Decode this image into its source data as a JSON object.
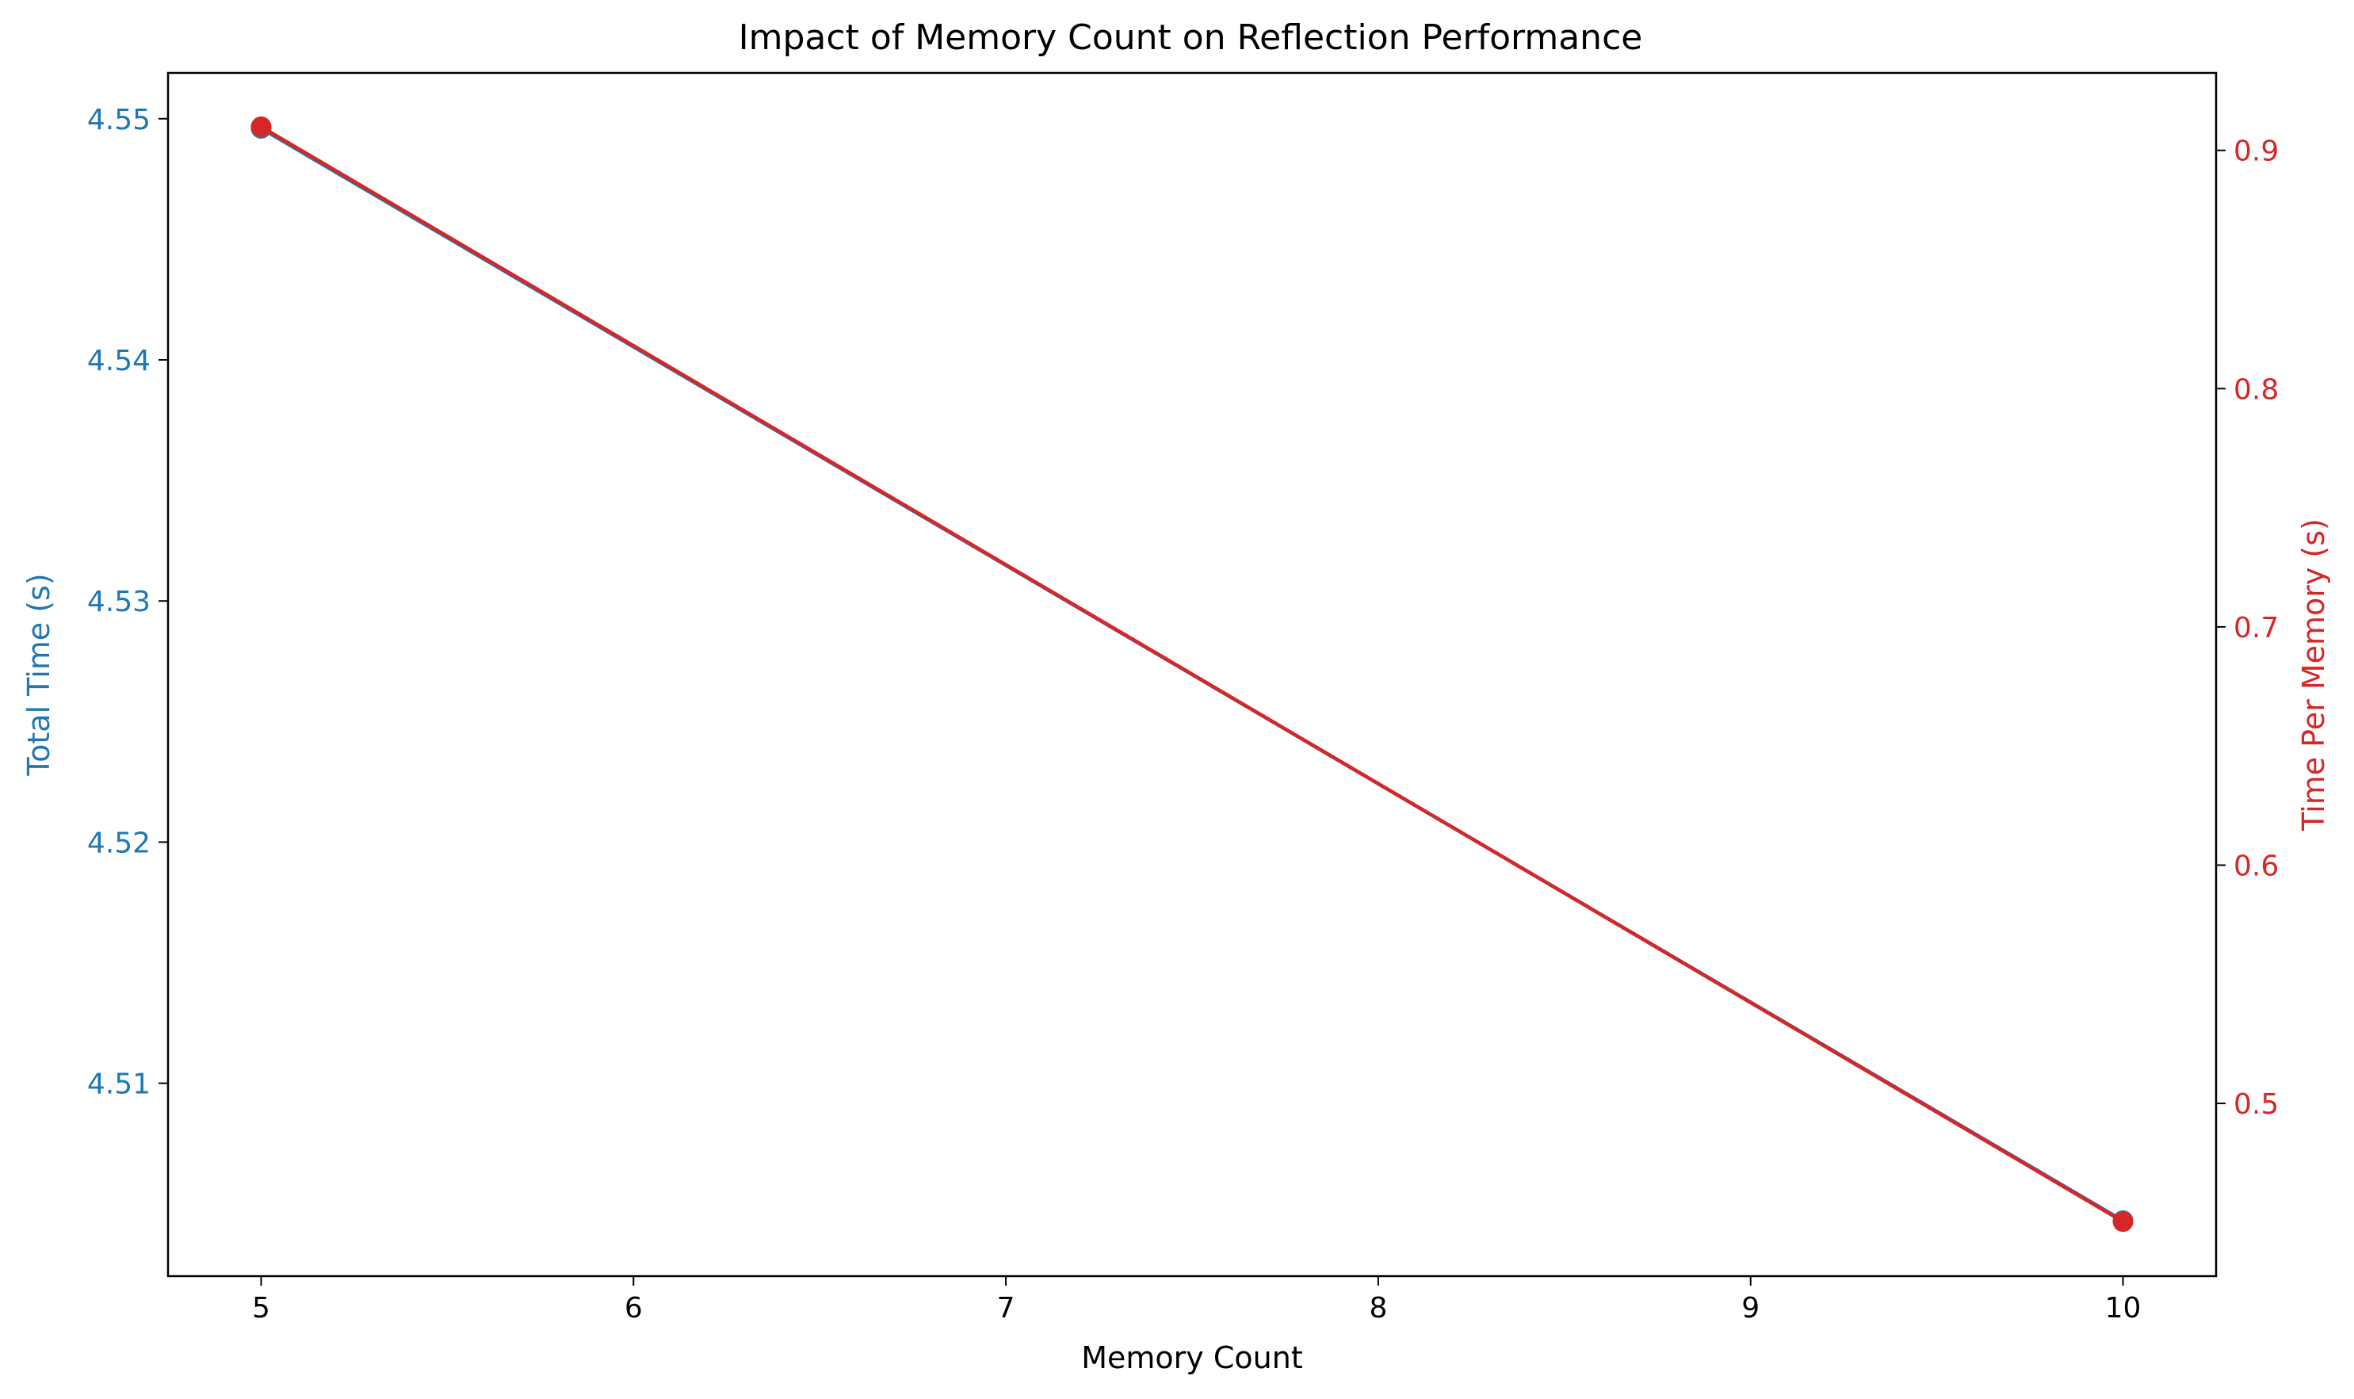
{
  "chart_data": {
    "type": "line",
    "title": "Impact of Memory Count on Reflection Performance",
    "xlabel": "Memory Count",
    "x": [
      5,
      10
    ],
    "xlim": [
      4.75,
      10.25
    ],
    "xticks": [
      "5",
      "6",
      "7",
      "8",
      "9",
      "10"
    ],
    "grid": false,
    "legend": "none",
    "left_axis": {
      "label": "Total Time (s)",
      "color": "#1f77b4",
      "ylim": [
        4.502,
        4.5519
      ],
      "ticks": [
        "4.51",
        "4.52",
        "4.53",
        "4.54",
        "4.55"
      ]
    },
    "right_axis": {
      "label": "Time Per Memory (s)",
      "color": "#d62728",
      "ylim": [
        0.4275,
        0.9325
      ],
      "ticks": [
        "0.5",
        "0.6",
        "0.7",
        "0.8",
        "0.9"
      ]
    },
    "series": [
      {
        "axis": "left",
        "color": "#1f77b4",
        "x": [
          5,
          10
        ],
        "values": [
          4.5496,
          4.5043
        ]
      },
      {
        "axis": "right",
        "color": "#d62728",
        "x": [
          5,
          10
        ],
        "values": [
          0.9099,
          0.4504
        ]
      }
    ]
  }
}
